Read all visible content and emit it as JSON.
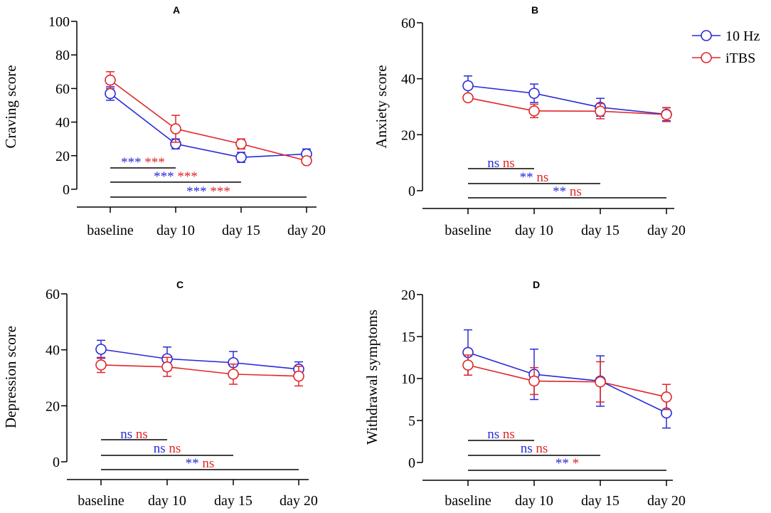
{
  "colors": {
    "ten_hz": "#2a2ad8",
    "itbs": "#e0262a",
    "axis": "#000000"
  },
  "legend": [
    {
      "key": "ten_hz",
      "label": "10 Hz"
    },
    {
      "key": "itbs",
      "label": "iTBS"
    }
  ],
  "chart_data": [
    {
      "panel": "A",
      "type": "line",
      "title": "A",
      "xlabel": "",
      "ylabel": "Craving score",
      "categories": [
        "baseline",
        "day 10",
        "day 15",
        "day 20"
      ],
      "ylim": [
        0,
        100
      ],
      "yticks": [
        0,
        20,
        40,
        60,
        80,
        100
      ],
      "series": [
        {
          "name": "10 Hz",
          "key": "ten_hz",
          "values": [
            57,
            27,
            19,
            21
          ],
          "err": [
            4,
            3,
            3,
            3
          ]
        },
        {
          "name": "iTBS",
          "key": "itbs",
          "values": [
            65,
            36,
            27,
            17
          ],
          "err": [
            5,
            8,
            3,
            1
          ]
        }
      ],
      "comparisons": [
        {
          "from": 0,
          "to": 1,
          "a": "***",
          "b": "***"
        },
        {
          "from": 0,
          "to": 2,
          "a": "***",
          "b": "***"
        },
        {
          "from": 0,
          "to": 3,
          "a": "***",
          "b": "***"
        }
      ]
    },
    {
      "panel": "B",
      "type": "line",
      "title": "B",
      "xlabel": "",
      "ylabel": "Anxiety score",
      "categories": [
        "baseline",
        "day 10",
        "day 15",
        "day 20"
      ],
      "ylim": [
        0,
        60
      ],
      "yticks": [
        0,
        20,
        40,
        60
      ],
      "series": [
        {
          "name": "10 Hz",
          "key": "ten_hz",
          "values": [
            37.5,
            34.8,
            29.8,
            27.3
          ],
          "err": [
            3.5,
            3.3,
            3.2,
            2.3
          ]
        },
        {
          "name": "iTBS",
          "key": "itbs",
          "values": [
            33.2,
            28.5,
            28.4,
            27.2
          ],
          "err": [
            1,
            2.4,
            2.7,
            2.5
          ]
        }
      ],
      "comparisons": [
        {
          "from": 0,
          "to": 1,
          "a": "ns",
          "b": "ns"
        },
        {
          "from": 0,
          "to": 2,
          "a": "**",
          "b": "ns"
        },
        {
          "from": 0,
          "to": 3,
          "a": "**",
          "b": "ns"
        }
      ]
    },
    {
      "panel": "C",
      "type": "line",
      "title": "C",
      "xlabel": "",
      "ylabel": "Depression score",
      "categories": [
        "baseline",
        "day 10",
        "day 15",
        "day 20"
      ],
      "ylim": [
        0,
        60
      ],
      "yticks": [
        0,
        20,
        40,
        60
      ],
      "series": [
        {
          "name": "10 Hz",
          "key": "ten_hz",
          "values": [
            40.2,
            36.8,
            35.4,
            33.1
          ],
          "err": [
            3.2,
            4.2,
            4,
            2.6
          ]
        },
        {
          "name": "iTBS",
          "key": "itbs",
          "values": [
            34.6,
            33.9,
            31.3,
            30.6
          ],
          "err": [
            2.7,
            3.4,
            3.6,
            3.5
          ]
        }
      ],
      "comparisons": [
        {
          "from": 0,
          "to": 1,
          "a": "ns",
          "b": "ns"
        },
        {
          "from": 0,
          "to": 2,
          "a": "ns",
          "b": "ns"
        },
        {
          "from": 0,
          "to": 3,
          "a": "**",
          "b": "ns"
        }
      ]
    },
    {
      "panel": "D",
      "type": "line",
      "title": "D",
      "xlabel": "",
      "ylabel": "Withdrawal symptoms",
      "categories": [
        "baseline",
        "day 10",
        "day 15",
        "day 20"
      ],
      "ylim": [
        0,
        20
      ],
      "yticks": [
        0,
        5,
        10,
        15,
        20
      ],
      "series": [
        {
          "name": "10 Hz",
          "key": "ten_hz",
          "values": [
            13.1,
            10.5,
            9.7,
            5.9
          ],
          "err": [
            2.7,
            3,
            3,
            1.8
          ]
        },
        {
          "name": "iTBS",
          "key": "itbs",
          "values": [
            11.6,
            9.7,
            9.6,
            7.8
          ],
          "err": [
            1.2,
            1.6,
            2.4,
            1.5
          ]
        }
      ],
      "comparisons": [
        {
          "from": 0,
          "to": 1,
          "a": "ns",
          "b": "ns"
        },
        {
          "from": 0,
          "to": 2,
          "a": "ns",
          "b": "ns"
        },
        {
          "from": 0,
          "to": 3,
          "a": "**",
          "b": "*"
        }
      ]
    }
  ]
}
